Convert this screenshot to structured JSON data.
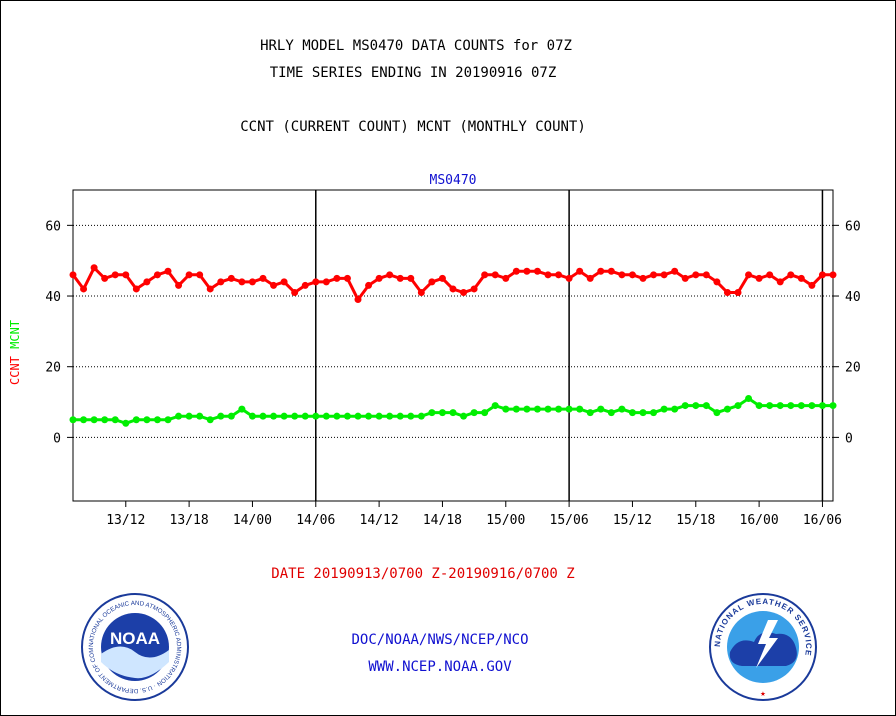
{
  "header": {
    "title_line1": "HRLY MODEL MS0470 DATA COUNTS for 07Z",
    "title_line2": "TIME SERIES ENDING IN 20190916 07Z",
    "subtitle": "CCNT (CURRENT COUNT) MCNT (MONTHLY COUNT)"
  },
  "footer": {
    "date_range": "DATE 20190913/0700 Z-20190916/0700 Z",
    "org": "DOC/NOAA/NWS/NCEP/NCO",
    "url": "WWW.NCEP.NOAA.GOV"
  },
  "logos": {
    "left": {
      "text": "NOAA",
      "ring_text": "NATIONAL OCEANIC AND ATMOSPHERIC ADMINISTRATION · U.S. DEPARTMENT OF COMMERCE"
    },
    "right": {
      "ring_text": "NATIONAL WEATHER SERVICE"
    }
  },
  "chart_data": {
    "type": "line",
    "title": "MS0470",
    "ylabel_left": [
      "CCNT",
      "MCNT"
    ],
    "ylim": [
      -18,
      70
    ],
    "yticks": [
      0,
      20,
      40,
      60
    ],
    "xlim": [
      0,
      72
    ],
    "x_unit": "hours since 13/07Z",
    "grid": "horizontal dotted at y ticks",
    "xtick_labels": [
      {
        "x": 5,
        "label": "13/12"
      },
      {
        "x": 11,
        "label": "13/18"
      },
      {
        "x": 17,
        "label": "14/00"
      },
      {
        "x": 23,
        "label": "14/06"
      },
      {
        "x": 29,
        "label": "14/12"
      },
      {
        "x": 35,
        "label": "14/18"
      },
      {
        "x": 41,
        "label": "15/00"
      },
      {
        "x": 47,
        "label": "15/06"
      },
      {
        "x": 53,
        "label": "15/12"
      },
      {
        "x": 59,
        "label": "15/18"
      },
      {
        "x": 65,
        "label": "16/00"
      },
      {
        "x": 71,
        "label": "16/06"
      }
    ],
    "vertical_lines_x": [
      23,
      47,
      71
    ],
    "series": [
      {
        "name": "CCNT",
        "color": "#ff0000",
        "values": [
          46,
          42,
          48,
          45,
          46,
          46,
          42,
          44,
          46,
          47,
          43,
          46,
          46,
          42,
          44,
          45,
          44,
          44,
          45,
          43,
          44,
          41,
          43,
          44,
          44,
          45,
          45,
          39,
          43,
          45,
          46,
          45,
          45,
          41,
          44,
          45,
          42,
          41,
          42,
          46,
          46,
          45,
          47,
          47,
          47,
          46,
          46,
          45,
          47,
          45,
          47,
          47,
          46,
          46,
          45,
          46,
          46,
          47,
          45,
          46,
          46,
          44,
          41,
          41,
          46,
          45,
          46,
          44,
          46,
          45,
          43,
          46,
          46
        ]
      },
      {
        "name": "MCNT",
        "color": "#00ee00",
        "values": [
          5,
          5,
          5,
          5,
          5,
          4,
          5,
          5,
          5,
          5,
          6,
          6,
          6,
          5,
          6,
          6,
          8,
          6,
          6,
          6,
          6,
          6,
          6,
          6,
          6,
          6,
          6,
          6,
          6,
          6,
          6,
          6,
          6,
          6,
          7,
          7,
          7,
          6,
          7,
          7,
          9,
          8,
          8,
          8,
          8,
          8,
          8,
          8,
          8,
          7,
          8,
          7,
          8,
          7,
          7,
          7,
          8,
          8,
          9,
          9,
          9,
          7,
          8,
          9,
          11,
          9,
          9,
          9,
          9,
          9,
          9,
          9,
          9
        ]
      }
    ]
  }
}
